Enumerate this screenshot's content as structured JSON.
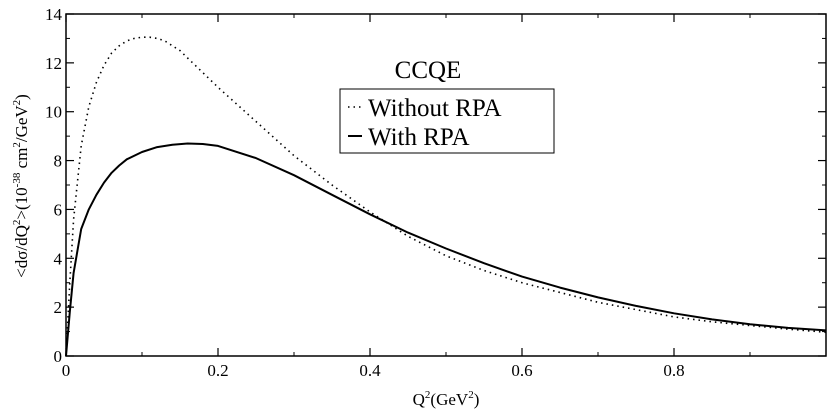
{
  "chart_data": {
    "type": "line",
    "title": "CCQE",
    "xlabel": {
      "pre": "Q",
      "sup": "2",
      "mid": "(GeV",
      "sup2": "2",
      "post": ")"
    },
    "ylabel": {
      "p1": "<dσ/dQ",
      "s1": "2",
      "p2": ">(10",
      "s2": "-38",
      "p3": " cm",
      "s3": "2",
      "p4": "/GeV",
      "s4": "2",
      "p5": ")"
    },
    "xlim": [
      0,
      1.0
    ],
    "ylim": [
      0,
      14
    ],
    "x_ticks": [
      0,
      0.2,
      0.4,
      0.6,
      0.8
    ],
    "x_tick_labels": [
      "0",
      "0.2",
      "0.4",
      "0.6",
      "0.8"
    ],
    "y_ticks": [
      0,
      2,
      4,
      6,
      8,
      10,
      12,
      14
    ],
    "y_tick_labels": [
      "0",
      "2",
      "4",
      "6",
      "8",
      "10",
      "12",
      "14"
    ],
    "grid": false,
    "legend_position": "upper-middle",
    "series": [
      {
        "name": "Without RPA",
        "style": "dotted",
        "color": "#000000",
        "x": [
          0,
          0.005,
          0.01,
          0.02,
          0.03,
          0.04,
          0.05,
          0.06,
          0.07,
          0.08,
          0.09,
          0.1,
          0.11,
          0.12,
          0.13,
          0.14,
          0.15,
          0.16,
          0.18,
          0.2,
          0.25,
          0.3,
          0.35,
          0.4,
          0.45,
          0.5,
          0.55,
          0.6,
          0.65,
          0.7,
          0.75,
          0.8,
          0.85,
          0.9,
          0.95,
          1.0
        ],
        "values": [
          0,
          3.0,
          5.6,
          8.6,
          10.2,
          11.2,
          11.9,
          12.4,
          12.7,
          12.9,
          13.0,
          13.05,
          13.05,
          13.0,
          12.9,
          12.7,
          12.5,
          12.2,
          11.6,
          11.0,
          9.6,
          8.2,
          7.0,
          5.9,
          4.9,
          4.1,
          3.5,
          3.0,
          2.6,
          2.2,
          1.9,
          1.6,
          1.4,
          1.25,
          1.1,
          0.97
        ]
      },
      {
        "name": "With RPA",
        "style": "solid",
        "color": "#000000",
        "x": [
          0,
          0.005,
          0.01,
          0.02,
          0.03,
          0.04,
          0.05,
          0.06,
          0.07,
          0.08,
          0.1,
          0.12,
          0.14,
          0.16,
          0.18,
          0.2,
          0.25,
          0.3,
          0.35,
          0.4,
          0.45,
          0.5,
          0.55,
          0.6,
          0.65,
          0.7,
          0.75,
          0.8,
          0.85,
          0.9,
          0.95,
          1.0
        ],
        "values": [
          0,
          1.8,
          3.4,
          5.2,
          6.0,
          6.6,
          7.1,
          7.5,
          7.8,
          8.05,
          8.35,
          8.55,
          8.65,
          8.7,
          8.68,
          8.6,
          8.1,
          7.4,
          6.6,
          5.8,
          5.05,
          4.4,
          3.8,
          3.25,
          2.8,
          2.4,
          2.05,
          1.75,
          1.5,
          1.3,
          1.15,
          1.05
        ]
      }
    ]
  }
}
